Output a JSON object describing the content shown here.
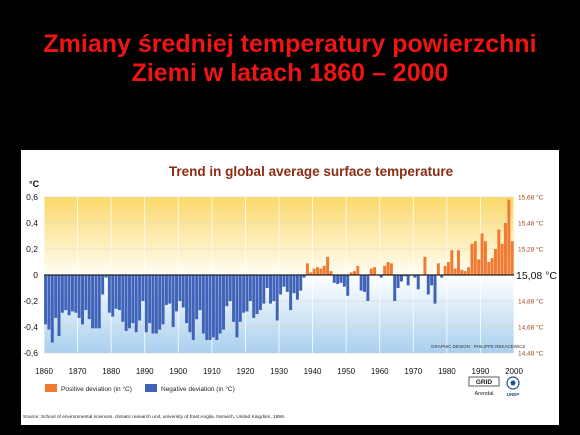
{
  "slide": {
    "title_line1": "Zmiany średniej temperatury powierzchni",
    "title_line2": "Ziemi w latach 1860 – 2000"
  },
  "chart_data": {
    "type": "bar",
    "title": "Trend in global average surface temperature",
    "ylabel": "°C",
    "ylim": [
      -0.6,
      0.6
    ],
    "xlim": [
      1860,
      2000
    ],
    "y_ticks": [
      "0,6",
      "0,4",
      "0,2",
      "0",
      "-0,2",
      "-0,4",
      "-0,6"
    ],
    "x_ticks": [
      "1860",
      "1870",
      "1880",
      "1890",
      "1900",
      "1910",
      "1920",
      "1930",
      "1940",
      "1950",
      "1960",
      "1970",
      "1980",
      "1990",
      "2000"
    ],
    "right_axis_labels": [
      "15,68 °C",
      "15,48 °C",
      "15,28 °C",
      "15,08 °C",
      "14,88 °C",
      "14,68 °C",
      "14,48 °C"
    ],
    "years": [
      1860,
      1861,
      1862,
      1863,
      1864,
      1865,
      1866,
      1867,
      1868,
      1869,
      1870,
      1871,
      1872,
      1873,
      1874,
      1875,
      1876,
      1877,
      1878,
      1879,
      1880,
      1881,
      1882,
      1883,
      1884,
      1885,
      1886,
      1887,
      1888,
      1889,
      1890,
      1891,
      1892,
      1893,
      1894,
      1895,
      1896,
      1897,
      1898,
      1899,
      1900,
      1901,
      1902,
      1903,
      1904,
      1905,
      1906,
      1907,
      1908,
      1909,
      1910,
      1911,
      1912,
      1913,
      1914,
      1915,
      1916,
      1917,
      1918,
      1919,
      1920,
      1921,
      1922,
      1923,
      1924,
      1925,
      1926,
      1927,
      1928,
      1929,
      1930,
      1931,
      1932,
      1933,
      1934,
      1935,
      1936,
      1937,
      1938,
      1939,
      1940,
      1941,
      1942,
      1943,
      1944,
      1945,
      1946,
      1947,
      1948,
      1949,
      1950,
      1951,
      1952,
      1953,
      1954,
      1955,
      1956,
      1957,
      1958,
      1959,
      1960,
      1961,
      1962,
      1963,
      1964,
      1965,
      1966,
      1967,
      1968,
      1969,
      1970,
      1971,
      1972,
      1973,
      1974,
      1975,
      1976,
      1977,
      1978,
      1979,
      1980,
      1981,
      1982,
      1983,
      1984,
      1985,
      1986,
      1987,
      1988,
      1989,
      1990,
      1991,
      1992,
      1993,
      1994,
      1995,
      1996,
      1997,
      1998,
      1999
    ],
    "values": [
      -0.38,
      -0.42,
      -0.52,
      -0.33,
      -0.47,
      -0.29,
      -0.27,
      -0.31,
      -0.28,
      -0.29,
      -0.33,
      -0.38,
      -0.27,
      -0.34,
      -0.41,
      -0.41,
      -0.41,
      -0.15,
      -0.02,
      -0.29,
      -0.32,
      -0.26,
      -0.27,
      -0.36,
      -0.43,
      -0.41,
      -0.37,
      -0.44,
      -0.35,
      -0.2,
      -0.44,
      -0.37,
      -0.45,
      -0.45,
      -0.42,
      -0.38,
      -0.23,
      -0.22,
      -0.4,
      -0.28,
      -0.2,
      -0.25,
      -0.37,
      -0.44,
      -0.5,
      -0.34,
      -0.27,
      -0.45,
      -0.5,
      -0.5,
      -0.48,
      -0.5,
      -0.45,
      -0.42,
      -0.24,
      -0.2,
      -0.36,
      -0.48,
      -0.36,
      -0.29,
      -0.28,
      -0.2,
      -0.33,
      -0.3,
      -0.27,
      -0.22,
      -0.1,
      -0.22,
      -0.2,
      -0.35,
      -0.15,
      -0.09,
      -0.13,
      -0.27,
      -0.14,
      -0.19,
      -0.12,
      -0.02,
      0.09,
      0.02,
      0.05,
      0.06,
      0.05,
      0.07,
      0.14,
      0.03,
      -0.06,
      -0.07,
      -0.06,
      -0.09,
      -0.16,
      0.02,
      0.03,
      0.07,
      -0.12,
      -0.13,
      -0.2,
      0.05,
      0.06,
      0.0,
      -0.02,
      0.07,
      0.1,
      0.09,
      -0.2,
      -0.1,
      -0.05,
      -0.01,
      -0.08,
      0.0,
      -0.02,
      -0.11,
      0.0,
      0.14,
      -0.15,
      -0.08,
      -0.22,
      0.09,
      -0.02,
      0.07,
      0.1,
      0.19,
      0.05,
      0.19,
      0.04,
      0.03,
      0.06,
      0.24,
      0.26,
      0.12,
      0.32,
      0.26,
      0.1,
      0.13,
      0.2,
      0.35,
      0.24,
      0.4,
      0.58,
      0.26
    ],
    "positive_color": "#f07a32",
    "negative_color": "#3f63b8",
    "legend": [
      "Positive deviation (in °C)",
      "Negative deviation (in °C)"
    ],
    "credit": "GRAPHIC DESIGN : PHILIPPE REKACEWICZ",
    "logos": [
      "GRID Arendal",
      "UNEP"
    ],
    "source": "Source: School of environmental sciences, climatic research unit, university of East Anglia, Norwich, United Kingdom, 1999."
  }
}
